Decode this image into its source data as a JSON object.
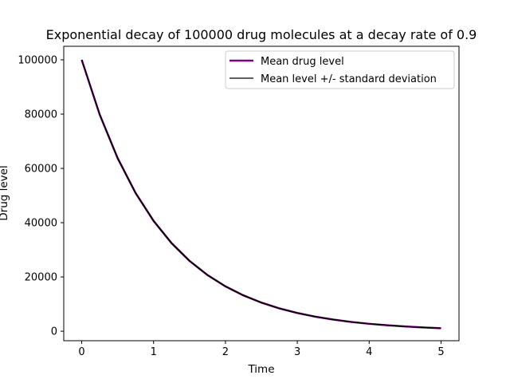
{
  "chart_data": {
    "type": "line",
    "title": "Exponential decay of 100000 drug molecules at a decay rate of 0.9",
    "xlabel": "Time",
    "ylabel": "Drug level",
    "xlim": [
      -0.25,
      5.25
    ],
    "ylim": [
      -3500,
      105000
    ],
    "x_ticks": [
      0,
      1,
      2,
      3,
      4,
      5
    ],
    "x_tick_labels": [
      "0",
      "1",
      "2",
      "3",
      "4",
      "5"
    ],
    "y_ticks": [
      0,
      20000,
      40000,
      60000,
      80000,
      100000
    ],
    "y_tick_labels": [
      "0",
      "20000",
      "40000",
      "60000",
      "80000",
      "100000"
    ],
    "grid": false,
    "legend_position": "upper right",
    "x": [
      0,
      0.25,
      0.5,
      0.75,
      1,
      1.25,
      1.5,
      1.75,
      2,
      2.25,
      2.5,
      2.75,
      3,
      3.25,
      3.5,
      3.75,
      4,
      4.25,
      4.5,
      4.75,
      5
    ],
    "series": [
      {
        "name": "Mean drug level",
        "color": "#800080",
        "values": [
          100000,
          79850,
          63760,
          50910,
          40660,
          32460,
          25920,
          20700,
          16530,
          13200,
          10540,
          8410,
          6720,
          5360,
          4290,
          3420,
          2730,
          2180,
          1740,
          1390,
          1110
        ]
      },
      {
        "name": "Mean level +/- standard deviation",
        "color": "#000000",
        "values": [
          100000,
          79980,
          63910,
          51050,
          40800,
          32590,
          26030,
          20800,
          16610,
          13270,
          10600,
          8470,
          6760,
          5400,
          4320,
          3450,
          2750,
          2200,
          1760,
          1400,
          1120
        ],
        "values_lower": [
          100000,
          79720,
          63610,
          50770,
          40520,
          32330,
          25810,
          20600,
          16450,
          13130,
          10480,
          8350,
          6680,
          5320,
          4260,
          3390,
          2710,
          2160,
          1720,
          1380,
          1100
        ]
      }
    ]
  }
}
